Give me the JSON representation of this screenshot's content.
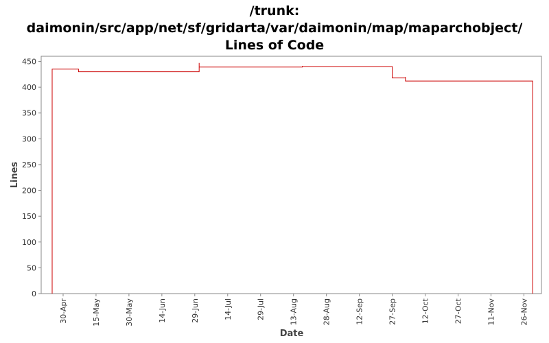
{
  "chart_data": {
    "type": "line",
    "title_lines": [
      "/trunk:",
      "daimonin/src/app/net/sf/gridarta/var/daimonin/map/maparchobject/",
      "Lines of Code"
    ],
    "xlabel": "Date",
    "ylabel": "Lines",
    "ylim": [
      0,
      460
    ],
    "yticks": [
      0,
      50,
      100,
      150,
      200,
      250,
      300,
      350,
      400,
      450
    ],
    "xlim": [
      "2008-04-20",
      "2008-12-04"
    ],
    "xticks": [
      {
        "date": "2008-04-30",
        "label": "30-Apr"
      },
      {
        "date": "2008-05-15",
        "label": "15-May"
      },
      {
        "date": "2008-05-30",
        "label": "30-May"
      },
      {
        "date": "2008-06-14",
        "label": "14-Jun"
      },
      {
        "date": "2008-06-29",
        "label": "29-Jun"
      },
      {
        "date": "2008-07-14",
        "label": "14-Jul"
      },
      {
        "date": "2008-07-29",
        "label": "29-Jul"
      },
      {
        "date": "2008-08-13",
        "label": "13-Aug"
      },
      {
        "date": "2008-08-28",
        "label": "28-Aug"
      },
      {
        "date": "2008-09-12",
        "label": "12-Sep"
      },
      {
        "date": "2008-09-27",
        "label": "27-Sep"
      },
      {
        "date": "2008-10-12",
        "label": "12-Oct"
      },
      {
        "date": "2008-10-27",
        "label": "27-Oct"
      },
      {
        "date": "2008-11-11",
        "label": "11-Nov"
      },
      {
        "date": "2008-11-26",
        "label": "26-Nov"
      }
    ],
    "grid": false,
    "step": true,
    "series": [
      {
        "color": "#cc0000",
        "points": [
          [
            "2008-04-25",
            0
          ],
          [
            "2008-04-25",
            435
          ],
          [
            "2008-05-07",
            435
          ],
          [
            "2008-05-07",
            430
          ],
          [
            "2008-07-01",
            430
          ],
          [
            "2008-07-01",
            447
          ],
          [
            "2008-07-01",
            439
          ],
          [
            "2008-08-17",
            439
          ],
          [
            "2008-08-17",
            441
          ],
          [
            "2008-08-17",
            439
          ],
          [
            "2008-08-17",
            440
          ],
          [
            "2008-09-27",
            440
          ],
          [
            "2008-09-27",
            418
          ],
          [
            "2008-10-03",
            418
          ],
          [
            "2008-10-03",
            420
          ],
          [
            "2008-10-03",
            412
          ],
          [
            "2008-11-30",
            412
          ],
          [
            "2008-11-30",
            0
          ]
        ]
      }
    ]
  }
}
